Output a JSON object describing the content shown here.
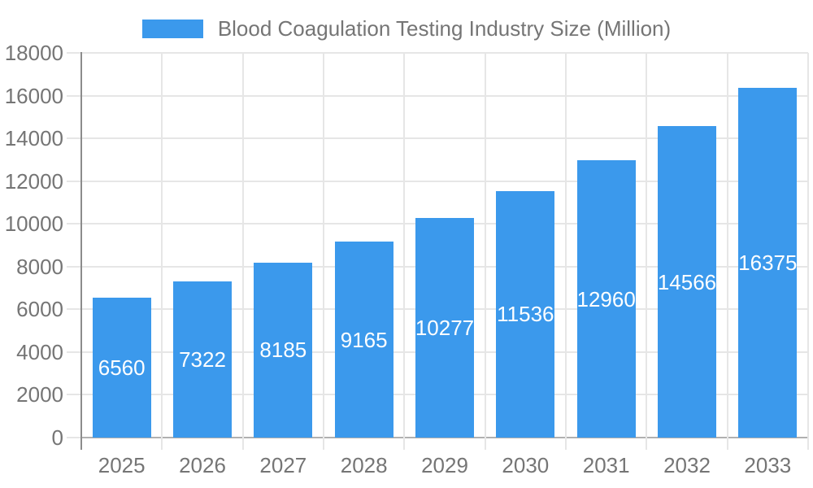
{
  "colors": {
    "bar": "#3b99ec",
    "text": "#757575",
    "value_label": "#ffffff",
    "gridline": "#e6e6e6",
    "baseline": "#b0b0b0",
    "axis_line": "#8c8c8c",
    "background": "#ffffff"
  },
  "chart_data": {
    "type": "bar",
    "title": "Blood Coagulation Testing Industry Size (Million)",
    "categories": [
      "2025",
      "2026",
      "2027",
      "2028",
      "2029",
      "2030",
      "2031",
      "2032",
      "2033"
    ],
    "values": [
      6560,
      7322,
      8185,
      9165,
      10277,
      11536,
      12960,
      14566,
      16375
    ],
    "series_name": "Blood Coagulation Testing Industry Size (Million)",
    "xlabel": "",
    "ylabel": "",
    "ylim": [
      0,
      18000
    ],
    "ytick_step": 2000,
    "ytick_labels": [
      "0",
      "2000",
      "4000",
      "6000",
      "8000",
      "10000",
      "12000",
      "14000",
      "16000",
      "18000"
    ],
    "grid": true,
    "legend_position": "top",
    "value_labels_shown": true,
    "value_label_position": "center-of-bar"
  }
}
